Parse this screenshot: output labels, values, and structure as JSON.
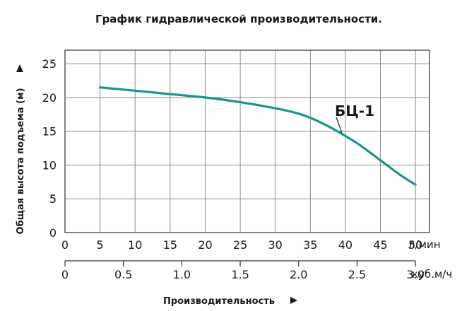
{
  "chart_data": {
    "type": "line",
    "title": "График гидравлической производительности.",
    "ylabel": "Общая высота подъема (м)",
    "xlabel": "Производительность",
    "x_unit": "л/мин",
    "x2_unit": "куб.м/ч",
    "xlim": [
      0,
      52
    ],
    "ylim": [
      0,
      27
    ],
    "y_ticks": [
      "0",
      "5",
      "10",
      "15",
      "20",
      "25"
    ],
    "y_tick_values": [
      0,
      5,
      10,
      15,
      20,
      25
    ],
    "x_ticks": [
      "0",
      "5",
      "10",
      "15",
      "20",
      "25",
      "30",
      "35",
      "40",
      "45",
      "50"
    ],
    "x_tick_values": [
      0,
      5,
      10,
      15,
      20,
      25,
      30,
      35,
      40,
      45,
      50
    ],
    "x2_ticks": [
      "0",
      "0.5",
      "1.0",
      "1.5",
      "2.0",
      "2.5",
      "3.0"
    ],
    "x2_tick_values": [
      0,
      0.5,
      1.0,
      1.5,
      2.0,
      2.5,
      3.0
    ],
    "grid": true,
    "series": [
      {
        "name": "БЦ-1",
        "color": "#1a9490",
        "x": [
          5,
          10,
          15,
          20,
          25,
          30,
          33,
          35,
          38,
          40,
          42,
          45,
          48,
          50
        ],
        "y": [
          21.5,
          21.0,
          20.5,
          20.0,
          19.3,
          18.4,
          17.7,
          17.0,
          15.5,
          14.3,
          13.0,
          10.7,
          8.4,
          7.1
        ]
      }
    ]
  }
}
